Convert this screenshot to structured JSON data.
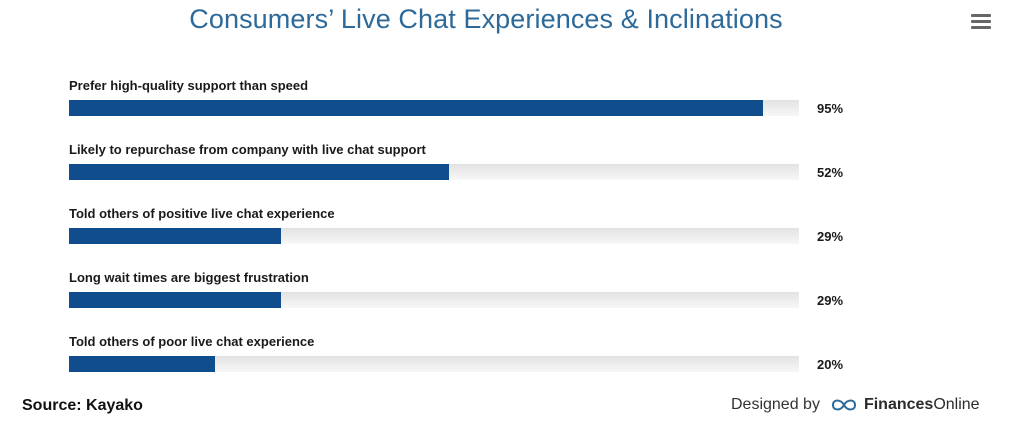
{
  "header": {
    "title": "Consumers’ Live Chat Experiences & Inclinations",
    "menu_icon": "hamburger-menu-icon"
  },
  "chart_data": {
    "type": "bar",
    "orientation": "horizontal",
    "title": "Consumers’ Live Chat Experiences & Inclinations",
    "categories": [
      "Prefer high-quality support than speed",
      "Likely to repurchase from company with live chat support",
      "Told others of positive live chat experience",
      "Long wait times are biggest frustration",
      "Told others of poor live chat experience"
    ],
    "values": [
      95,
      52,
      29,
      29,
      20
    ],
    "value_labels": [
      "95%",
      "52%",
      "29%",
      "29%",
      "20%"
    ],
    "xlim": [
      0,
      100
    ],
    "bar_color": "#0f4d8c",
    "track_color": "#e8e8e8",
    "grid": false,
    "legend": "none"
  },
  "footer": {
    "source": "Source: Kayako",
    "designed_by": "Designed by",
    "brand_part1": "Finances",
    "brand_part2": "Online",
    "logo_icon": "financesonline-logo-icon"
  }
}
